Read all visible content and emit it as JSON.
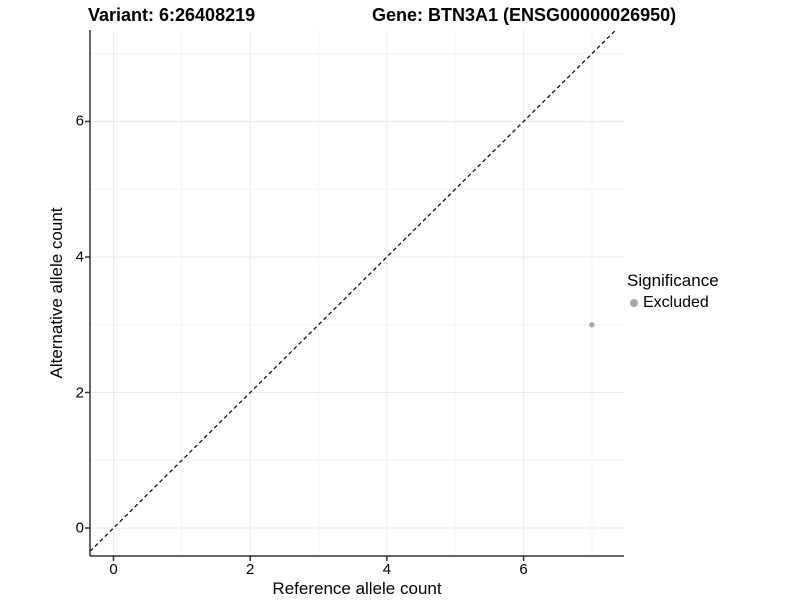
{
  "titles": {
    "variant": "Variant: 6:26408219",
    "gene": "Gene: BTN3A1 (ENSG00000026950)"
  },
  "legend": {
    "title": "Significance",
    "items": [
      {
        "label": "Excluded",
        "color": "#a8a8a8"
      }
    ]
  },
  "colors": {
    "point": "#a8a8a8",
    "axis_line": "#333333",
    "grid_major": "#ebebeb",
    "grid_minor": "#f4f4f4",
    "reference_line": "#000000",
    "text": "#000000"
  },
  "chart_data": {
    "type": "scatter",
    "title": "Variant: 6:26408219  |  Gene: BTN3A1 (ENSG00000026950)",
    "xlabel": "Reference allele count",
    "ylabel": "Alternative allele count",
    "series": [
      {
        "name": "Excluded",
        "color": "#a8a8a8",
        "points": [
          {
            "x": 7,
            "y": 3
          }
        ]
      }
    ],
    "reference_line": {
      "slope": 1,
      "intercept": 0,
      "style": "dashed"
    },
    "xlim": [
      -0.344,
      7.47
    ],
    "ylim": [
      -0.413,
      7.35
    ],
    "x_ticks": [
      0,
      2,
      4,
      6
    ],
    "y_ticks": [
      0,
      2,
      4,
      6
    ],
    "x_minor_gridlines": [
      1,
      3,
      5,
      7
    ],
    "y_minor_gridlines": [
      1,
      3,
      5,
      7
    ],
    "grid": true,
    "legend_position": "right"
  }
}
